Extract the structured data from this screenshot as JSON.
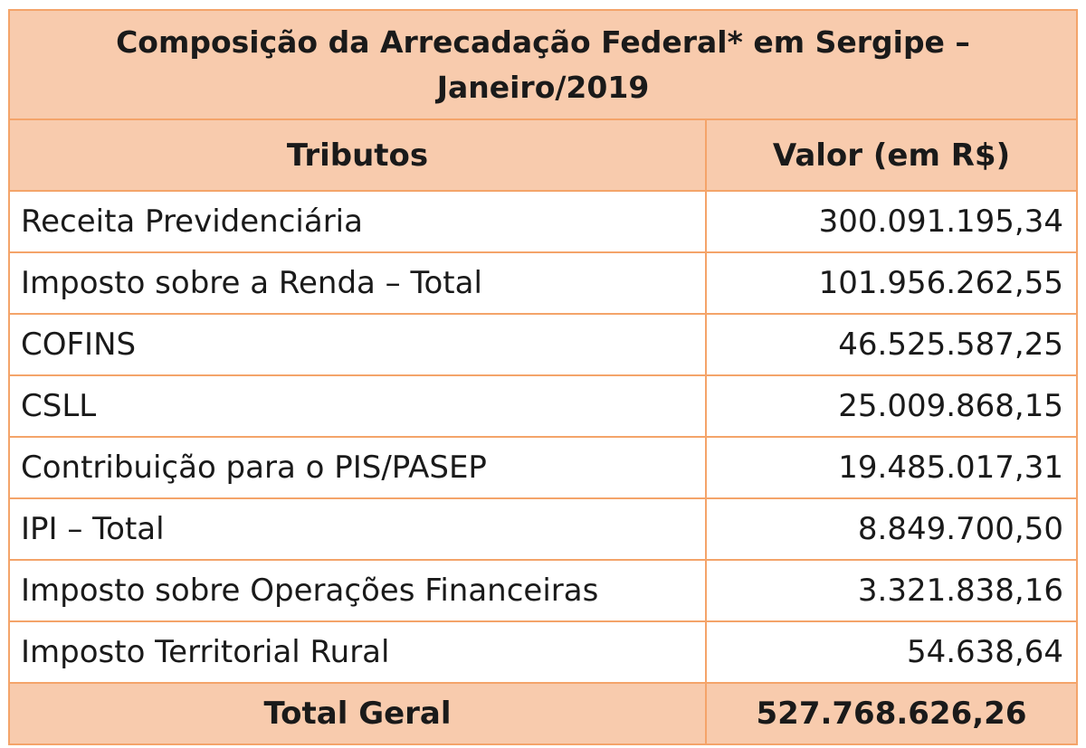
{
  "title": {
    "line1": "Composição da Arrecadação Federal* em Sergipe –",
    "line2": "Janeiro/2019"
  },
  "headers": {
    "tributos": "Tributos",
    "valor": "Valor (em R$)"
  },
  "rows": [
    {
      "name": "Receita Previdenciária",
      "value": "300.091.195,34"
    },
    {
      "name": "Imposto sobre a Renda – Total",
      "value": "101.956.262,55"
    },
    {
      "name": "COFINS",
      "value": "46.525.587,25"
    },
    {
      "name": "CSLL",
      "value": "25.009.868,15"
    },
    {
      "name": "Contribuição para o PIS/PASEP",
      "value": "19.485.017,31"
    },
    {
      "name": "IPI – Total",
      "value": "8.849.700,50"
    },
    {
      "name": "Imposto sobre Operações Financeiras",
      "value": "3.321.838,16"
    },
    {
      "name": "Imposto Territorial Rural",
      "value": "54.638,64"
    }
  ],
  "total": {
    "label": "Total Geral",
    "value": "527.768.626,26"
  },
  "colors": {
    "header_fill": "#f8cbad",
    "border": "#f4a46a"
  }
}
